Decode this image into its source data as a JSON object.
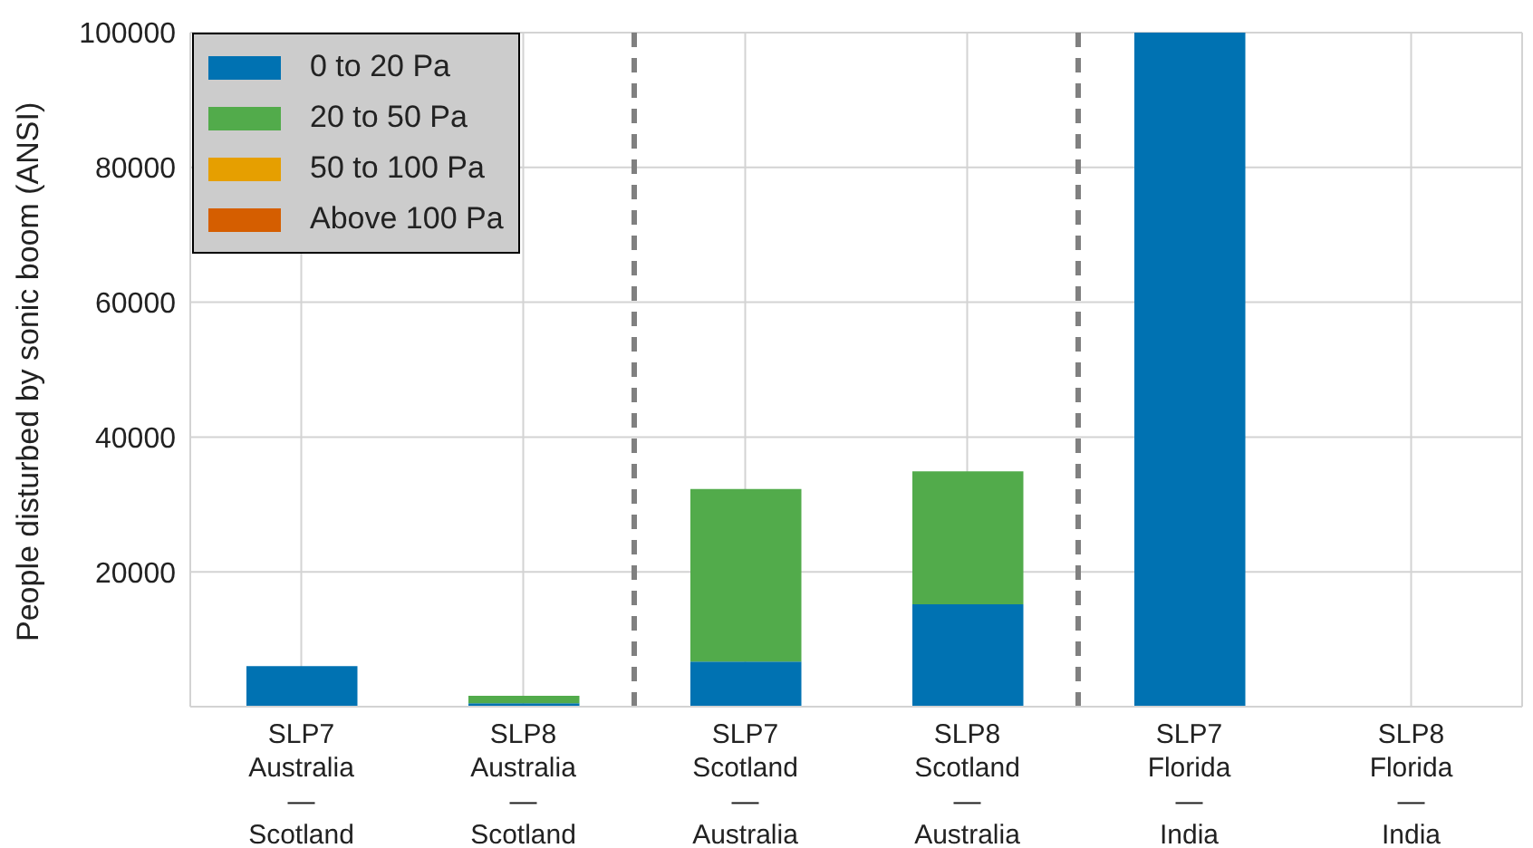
{
  "chart_data": {
    "type": "bar",
    "stacked": true,
    "ylabel": "People disturbed by sonic boom (ANSI)",
    "categories": [
      "SLP7\nAustralia\n—\nScotland",
      "SLP8\nAustralia\n—\nScotland",
      "SLP7\nScotland\n—\nAustralia",
      "SLP8\nScotland\n—\nAustralia",
      "SLP7\nFlorida\n—\nIndia",
      "SLP8\nFlorida\n—\nIndia"
    ],
    "series": [
      {
        "name": "0 to 20 Pa",
        "color": "#0072b2",
        "values": [
          6000,
          500,
          6700,
          15200,
          100000,
          0
        ]
      },
      {
        "name": "20 to 50 Pa",
        "color": "#52ab4b",
        "values": [
          0,
          1100,
          25600,
          19700,
          0,
          0
        ]
      },
      {
        "name": "50 to 100 Pa",
        "color": "#e69f00",
        "values": [
          0,
          0,
          0,
          0,
          0,
          0
        ]
      },
      {
        "name": "Above 100 Pa",
        "color": "#d55e00",
        "values": [
          0,
          0,
          0,
          0,
          0,
          0
        ]
      }
    ],
    "ylim": [
      0,
      100000
    ],
    "yticks": [
      {
        "value": 0,
        "label": null
      },
      20000,
      40000,
      60000,
      80000,
      100000
    ],
    "grid": true,
    "legend": "top left"
  }
}
